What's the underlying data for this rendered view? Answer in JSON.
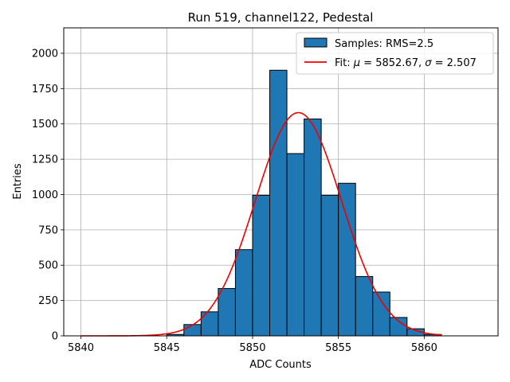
{
  "chart_data": {
    "type": "bar",
    "title": "Run 519, channel122, Pedestal",
    "xlabel": "ADC Counts",
    "ylabel": "Entries",
    "xlim": [
      5839.0,
      5864.3
    ],
    "ylim": [
      0,
      2180
    ],
    "xticks": [
      5840,
      5845,
      5850,
      5855,
      5860
    ],
    "yticks": [
      0,
      250,
      500,
      750,
      1000,
      1250,
      1500,
      1750,
      2000
    ],
    "grid": true,
    "legend_position": "top-right",
    "bar_color": "#1f77b4",
    "fit_color": "#ee0000",
    "histogram": {
      "name": "Samples: RMS=2.5",
      "bin_width": 1,
      "bins": [
        {
          "left": 5845,
          "value": 10
        },
        {
          "left": 5846,
          "value": 80
        },
        {
          "left": 5847,
          "value": 170
        },
        {
          "left": 5848,
          "value": 335
        },
        {
          "left": 5849,
          "value": 610
        },
        {
          "left": 5850,
          "value": 995
        },
        {
          "left": 5851,
          "value": 1880
        },
        {
          "left": 5852,
          "value": 1290
        },
        {
          "left": 5853,
          "value": 1535
        },
        {
          "left": 5854,
          "value": 995
        },
        {
          "left": 5855,
          "value": 1080
        },
        {
          "left": 5856,
          "value": 420
        },
        {
          "left": 5857,
          "value": 310
        },
        {
          "left": 5858,
          "value": 130
        },
        {
          "left": 5859,
          "value": 50
        },
        {
          "left": 5860,
          "value": 10
        }
      ]
    },
    "fit": {
      "name_prefix": "Fit: ",
      "mu_symbol": "μ",
      "equals_mu": " = 5852.67, ",
      "sigma_symbol": "σ",
      "equals_sigma": " = 2.507",
      "mu": 5852.67,
      "sigma": 2.507,
      "amplitude": 1580,
      "x_range": [
        5840,
        5861
      ]
    }
  }
}
